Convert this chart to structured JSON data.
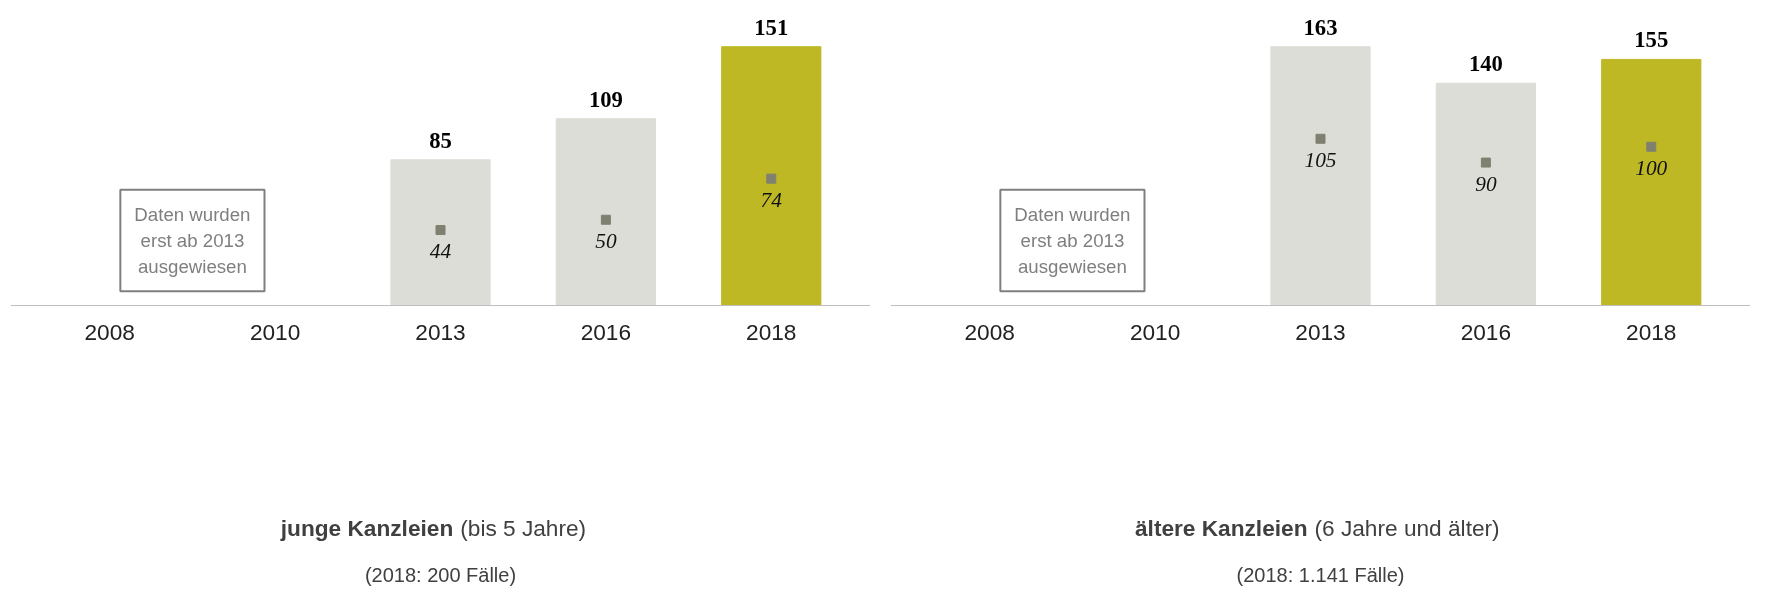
{
  "chart_data": [
    {
      "type": "bar",
      "title": "junge Kanzleien (bis 5 Jahre)",
      "subtitle": "(2018: 200 Fälle)",
      "categories": [
        "2008",
        "2010",
        "2013",
        "2016",
        "2018"
      ],
      "data_labels": true,
      "grid": false,
      "series": [
        {
          "colors": [
            "#dcddd6",
            "#dcddd6",
            "#dcddd6",
            "#dcddd6",
            "#bdb824"
          ],
          "values": [
            null,
            null,
            85,
            109,
            151
          ]
        },
        {
          "type": "scatter",
          "marker": "square",
          "color": "#808070",
          "values": [
            null,
            null,
            44,
            50,
            74
          ]
        }
      ],
      "annotations": [
        "Daten wurden\nerst ab 2013\nausgewiesen"
      ]
    },
    {
      "type": "bar",
      "title": "ältere Kanzleien (6 Jahre und älter)",
      "subtitle": "(2018: 1.141 Fälle)",
      "categories": [
        "2008",
        "2010",
        "2013",
        "2016",
        "2018"
      ],
      "data_labels": true,
      "grid": false,
      "series": [
        {
          "colors": [
            "#dcddd6",
            "#dcddd6",
            "#dcddd6",
            "#dcddd6",
            "#bdb824"
          ],
          "values": [
            null,
            null,
            163,
            140,
            155
          ]
        },
        {
          "type": "scatter",
          "marker": "square",
          "color": "#808070",
          "values": [
            null,
            null,
            105,
            90,
            100
          ]
        }
      ],
      "annotations": [
        "Daten wurden\nerst ab 2013\nausgewiesen"
      ]
    }
  ]
}
